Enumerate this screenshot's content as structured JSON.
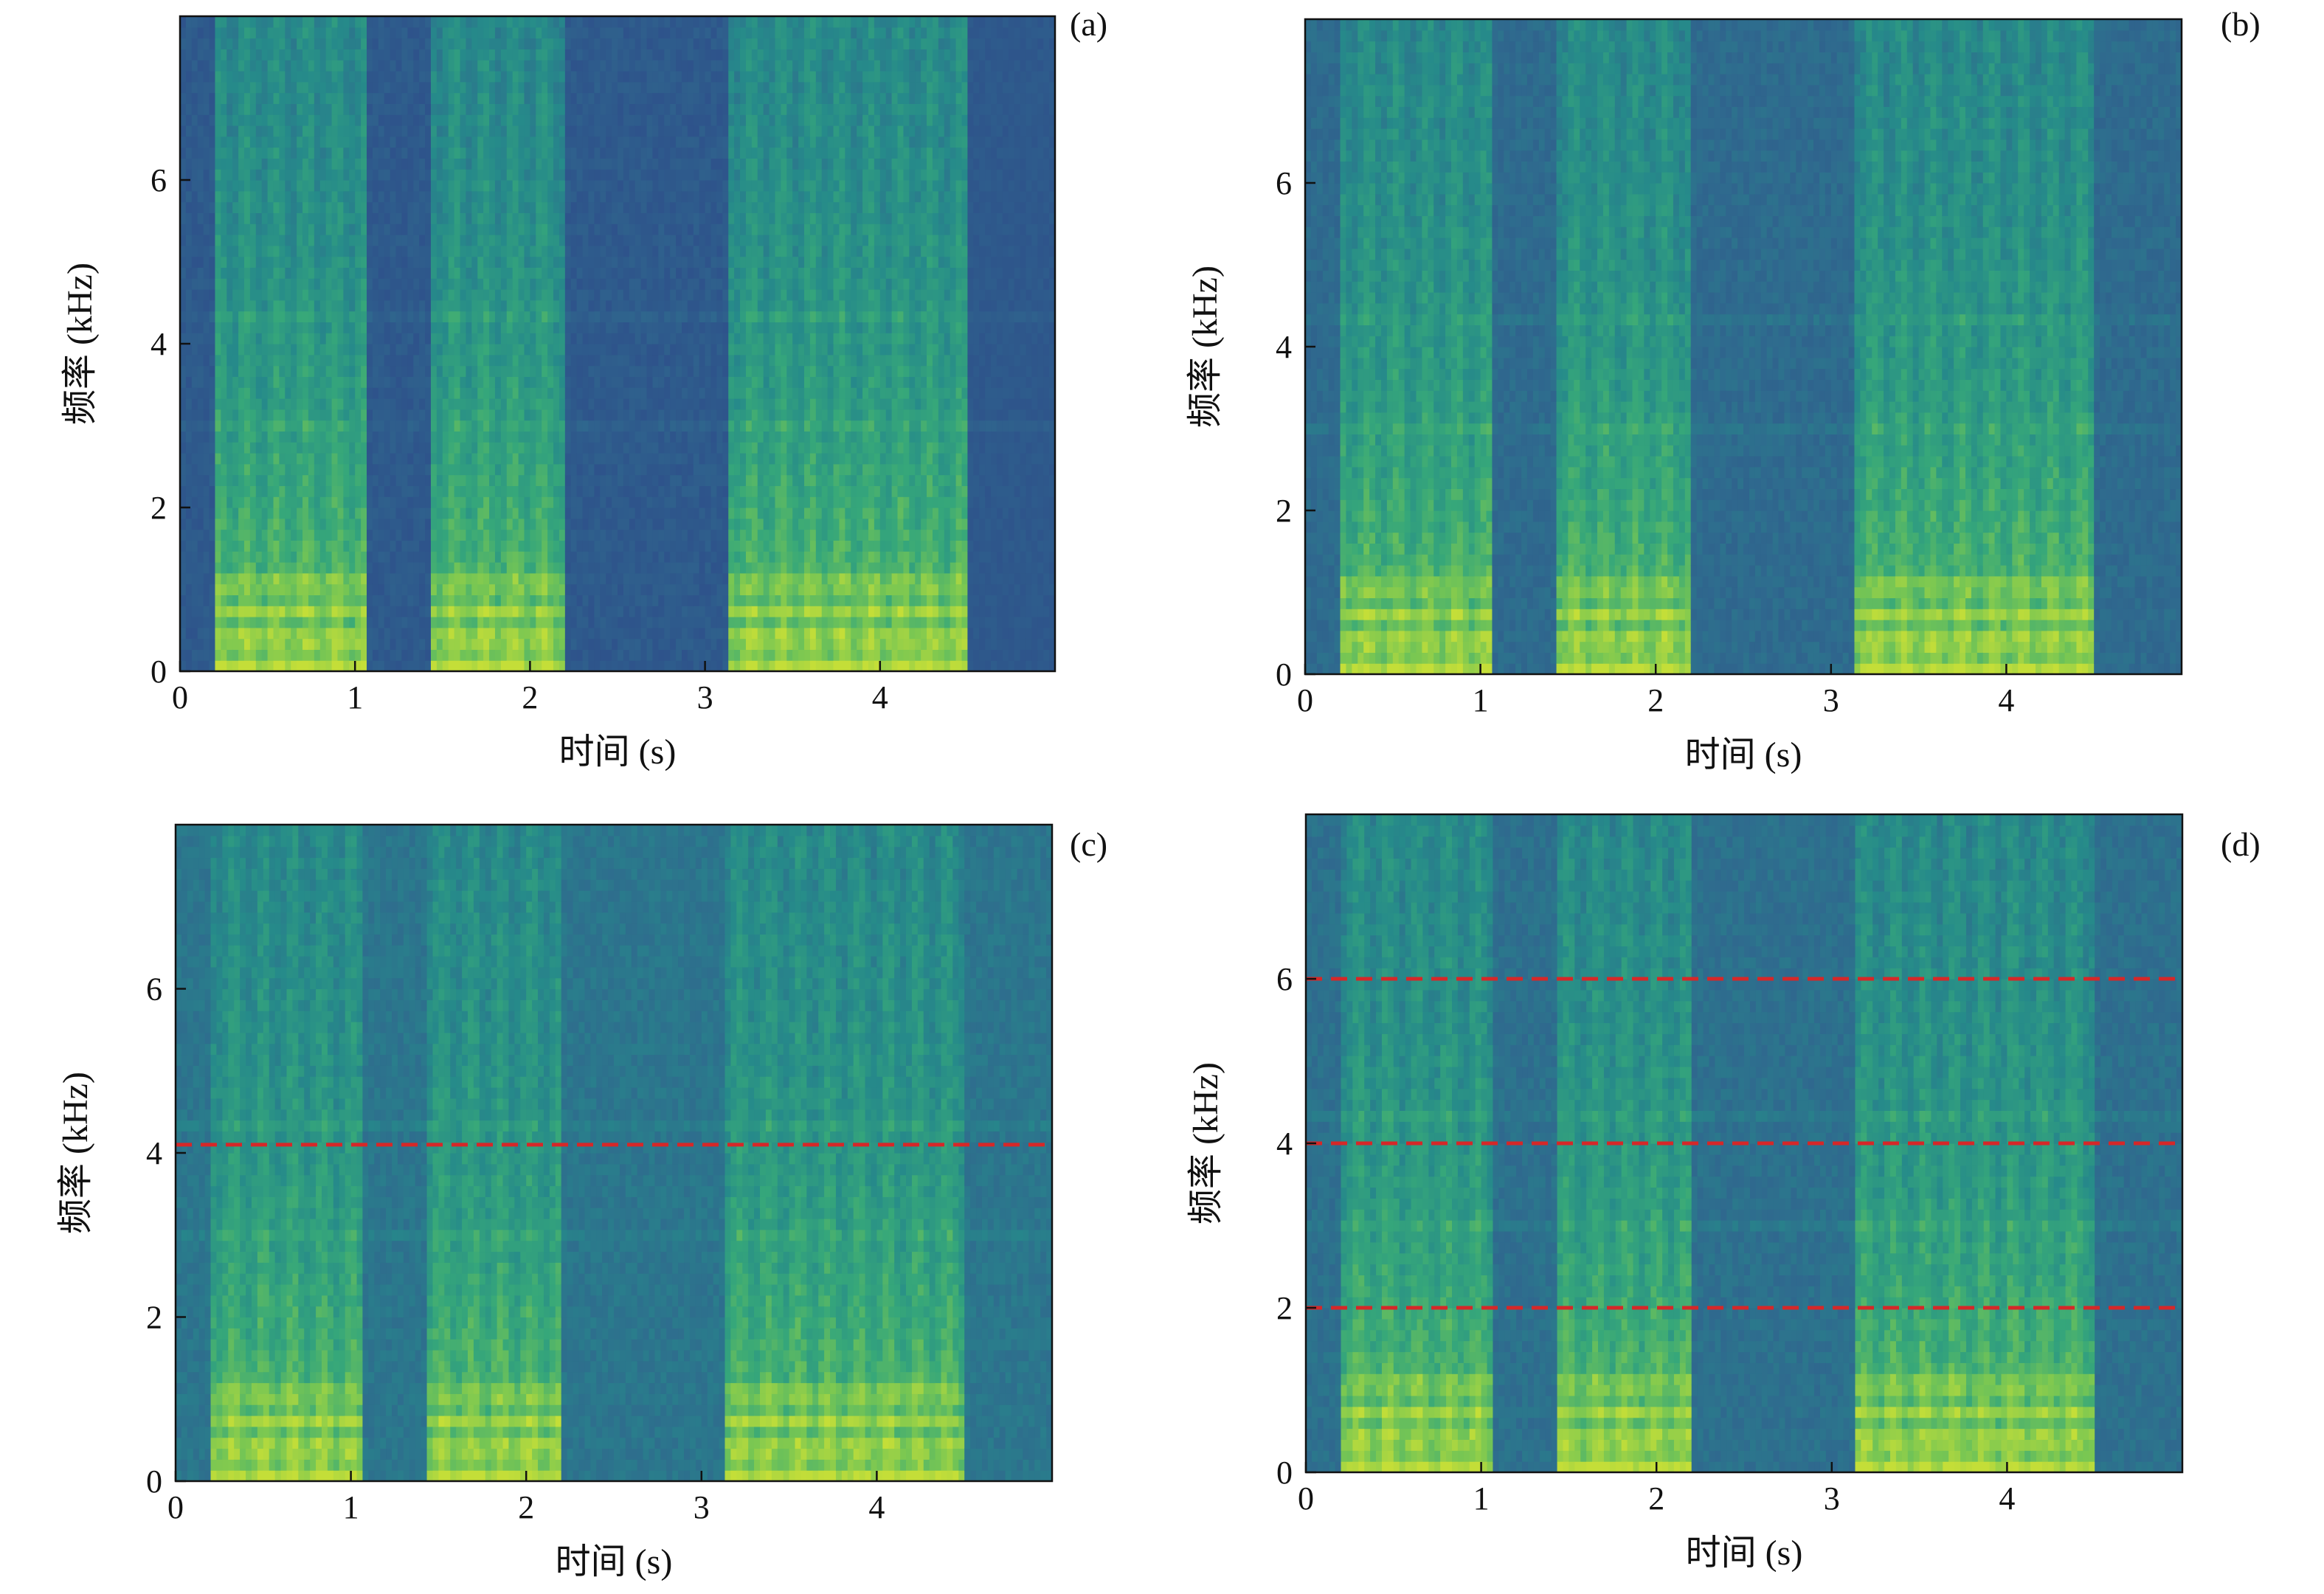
{
  "figure": {
    "panels": [
      {
        "id": "a",
        "label": "(a)"
      },
      {
        "id": "b",
        "label": "(b)"
      },
      {
        "id": "c",
        "label": "(c)"
      },
      {
        "id": "d",
        "label": "(d)"
      }
    ],
    "colors": {
      "colormap": [
        "#2e4f8a",
        "#2f6a8e",
        "#268a8a",
        "#36a77a",
        "#77c653",
        "#c4de38"
      ],
      "dashed_line": "#d62728",
      "axis": "#111111"
    }
  },
  "chart_data": [
    {
      "type": "heatmap",
      "panel": "(a)",
      "title": "",
      "xlabel": "时间 (s)",
      "ylabel": "频率 (kHz)",
      "xlim": [
        0,
        5
      ],
      "ylim": [
        0,
        8
      ],
      "xticks": [
        "0",
        "1",
        "2",
        "3",
        "4"
      ],
      "yticks": [
        "0",
        "2",
        "4",
        "6"
      ],
      "speech_segments_s": [
        [
          0.2,
          1.05
        ],
        [
          1.42,
          2.2
        ],
        [
          3.15,
          4.5
        ]
      ],
      "noise_level": 0.0,
      "hlines_khz": []
    },
    {
      "type": "heatmap",
      "panel": "(b)",
      "title": "",
      "xlabel": "时间 (s)",
      "ylabel": "频率 (kHz)",
      "xlim": [
        0,
        5
      ],
      "ylim": [
        0,
        8
      ],
      "xticks": [
        "0",
        "1",
        "2",
        "3",
        "4"
      ],
      "yticks": [
        "0",
        "2",
        "4",
        "6"
      ],
      "speech_segments_s": [
        [
          0.2,
          1.05
        ],
        [
          1.42,
          2.2
        ],
        [
          3.15,
          4.5
        ]
      ],
      "noise_level": 0.35,
      "hlines_khz": []
    },
    {
      "type": "heatmap",
      "panel": "(c)",
      "title": "",
      "xlabel": "时间 (s)",
      "ylabel": "频率 (kHz)",
      "xlim": [
        0,
        5
      ],
      "ylim": [
        0,
        8
      ],
      "xticks": [
        "0",
        "1",
        "2",
        "3",
        "4"
      ],
      "yticks": [
        "0",
        "2",
        "4",
        "6"
      ],
      "speech_segments_s": [
        [
          0.2,
          1.05
        ],
        [
          1.42,
          2.2
        ],
        [
          3.15,
          4.5
        ]
      ],
      "noise_level": 0.55,
      "hlines_khz": [
        4.1
      ]
    },
    {
      "type": "heatmap",
      "panel": "(d)",
      "title": "",
      "xlabel": "时间 (s)",
      "ylabel": "频率 (kHz)",
      "xlim": [
        0,
        5
      ],
      "ylim": [
        0,
        8
      ],
      "xticks": [
        "0",
        "1",
        "2",
        "3",
        "4"
      ],
      "yticks": [
        "0",
        "2",
        "4",
        "6"
      ],
      "speech_segments_s": [
        [
          0.2,
          1.05
        ],
        [
          1.42,
          2.2
        ],
        [
          3.15,
          4.5
        ]
      ],
      "noise_level": 0.45,
      "hlines_khz": [
        2.0,
        4.0,
        6.0
      ]
    }
  ]
}
